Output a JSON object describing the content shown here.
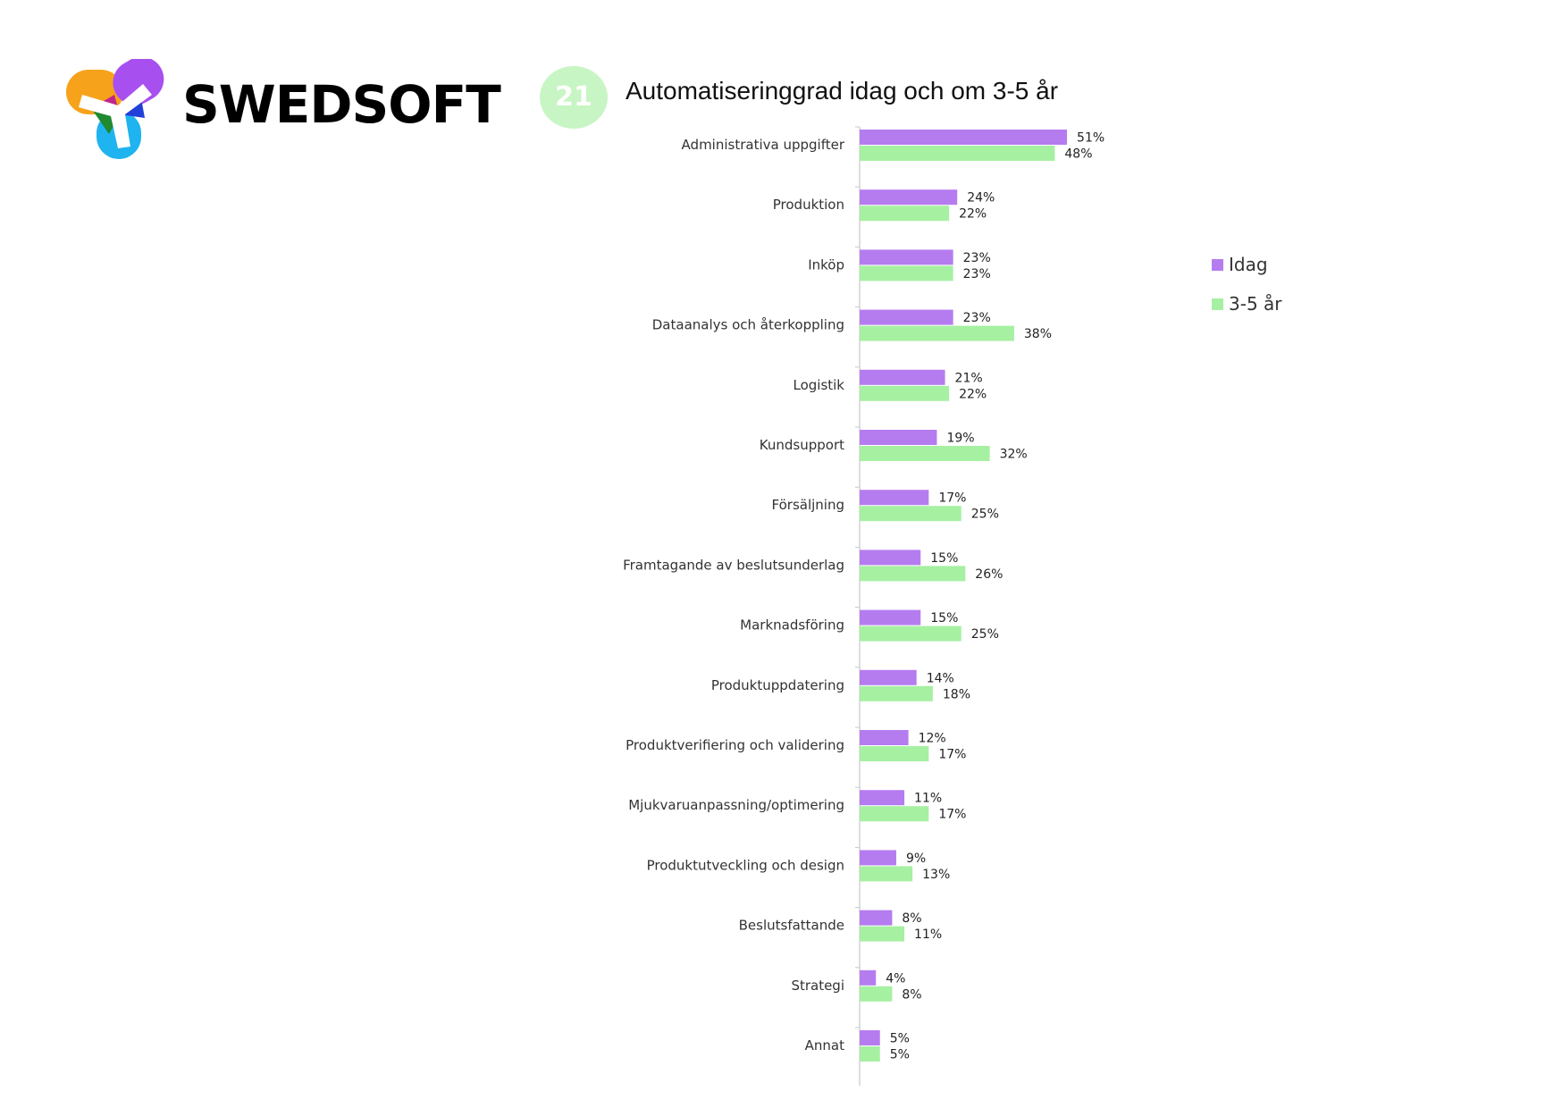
{
  "brand": {
    "name": "SWEDSOFT"
  },
  "chart_number": "21",
  "chart_data": {
    "type": "bar",
    "orientation": "horizontal",
    "title": "Automatiseringgrad idag och om 3-5 år",
    "categories": [
      "Administrativa uppgifter",
      "Produktion",
      "Inköp",
      "Dataanalys och återkoppling",
      "Logistik",
      "Kundsupport",
      "Försäljning",
      "Framtagande av beslutsunderlag",
      "Marknadsföring",
      "Produktuppdatering",
      "Produktverifiering och validering",
      "Mjukvaruanpassning/optimering",
      "Produktutveckling och design",
      "Beslutsfattande",
      "Strategi",
      "Annat"
    ],
    "series": [
      {
        "name": "Idag",
        "color": "#b57cf0",
        "values": [
          51,
          24,
          23,
          23,
          21,
          19,
          17,
          15,
          15,
          14,
          12,
          11,
          9,
          8,
          4,
          5
        ]
      },
      {
        "name": "3-5 år",
        "color": "#a6f0a2",
        "values": [
          48,
          22,
          23,
          38,
          22,
          32,
          25,
          26,
          25,
          18,
          17,
          17,
          13,
          11,
          8,
          5
        ]
      }
    ],
    "value_suffix": "%",
    "xlim": [
      0,
      100
    ],
    "grid": false,
    "legend_position": "right"
  }
}
